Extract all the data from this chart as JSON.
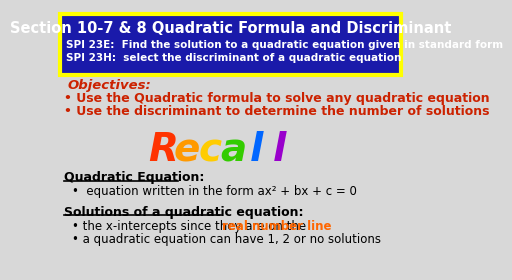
{
  "bg_color": "#d8d8d8",
  "header_bg": "#1a1aaa",
  "header_border": "#ffff00",
  "header_title": "Section 10-7 & 8 Quadratic Formula and Discriminant",
  "header_sub1": "SPI 23E:  Find the solution to a quadratic equation given in standard form",
  "header_sub2": "SPI 23H:  select the discriminant of a quadratic equation",
  "header_text_color": "#ffffff",
  "objectives_color": "#cc2200",
  "objectives_label": "Objectives:",
  "obj1": "Use the Quadratic formula to solve any quadratic equation",
  "obj2": "Use the discriminant to determine the number of solutions",
  "recall_text": "Recall",
  "recall_colors": [
    "#ff3300",
    "#ff9900",
    "#ffcc00",
    "#33cc00",
    "#0066ff",
    "#9900cc"
  ],
  "section1_title": "Quadratic Equation:",
  "section1_bullet": "equation written in the form ax² + bx + c = 0",
  "section2_title": "Solutions of a quadratic equation:",
  "section2_bullet1_pre": "the x-intercepts since they are on the ",
  "section2_bullet1_highlight": "real number line",
  "section2_bullet1_highlight_color": "#ff6600",
  "section2_bullet2": "a quadratic equation can have 1, 2 or no solutions",
  "black": "#000000",
  "white": "#ffffff"
}
